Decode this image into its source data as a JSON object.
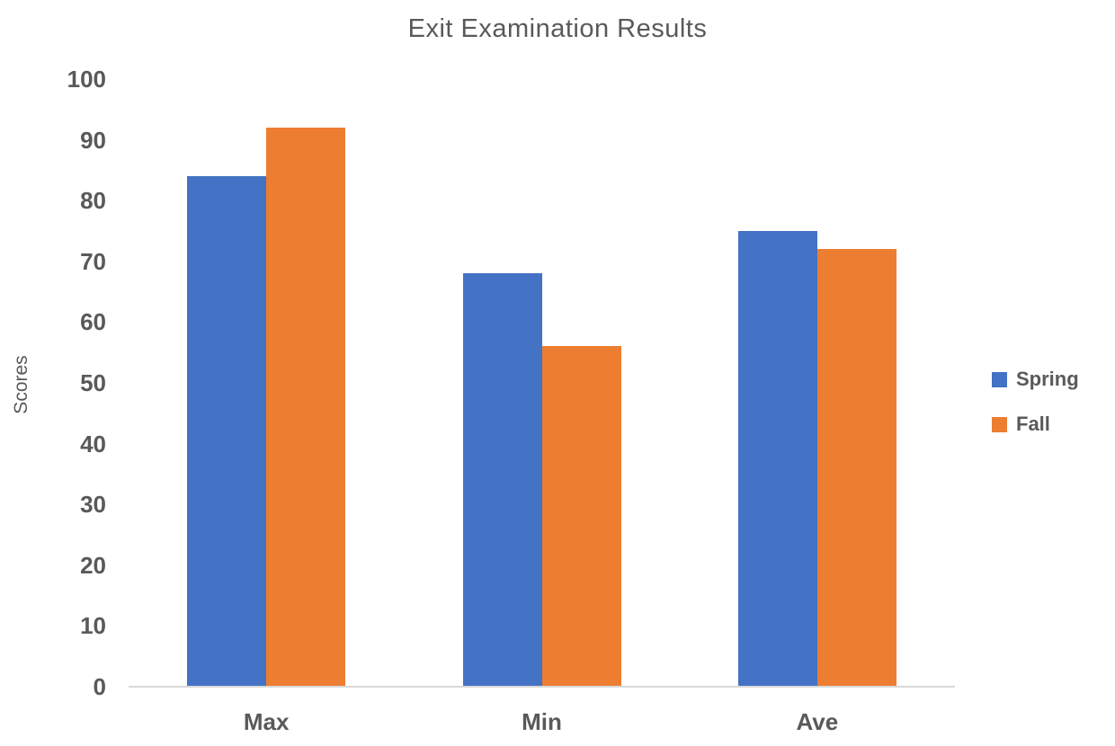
{
  "chart_data": {
    "type": "bar",
    "title": "Exit Examination Results",
    "xlabel": "",
    "ylabel": "Scores",
    "categories": [
      "Max",
      "Min",
      "Ave"
    ],
    "series": [
      {
        "name": "Spring",
        "color": "#4472C4",
        "values": [
          84,
          68,
          75
        ]
      },
      {
        "name": "Fall",
        "color": "#ED7D31",
        "values": [
          92,
          56,
          72
        ]
      }
    ],
    "ylim": [
      0,
      100
    ],
    "ytick_step": 10,
    "ytick_labels": [
      "0",
      "10",
      "20",
      "30",
      "40",
      "50",
      "60",
      "70",
      "80",
      "90",
      "100"
    ],
    "grid": false,
    "legend_position": "right"
  },
  "colors": {
    "text": "#595959",
    "axis_line": "#D9D9D9",
    "background": "#FFFFFF",
    "spring_bar": "#4472C4",
    "fall_bar": "#ED7D31"
  }
}
